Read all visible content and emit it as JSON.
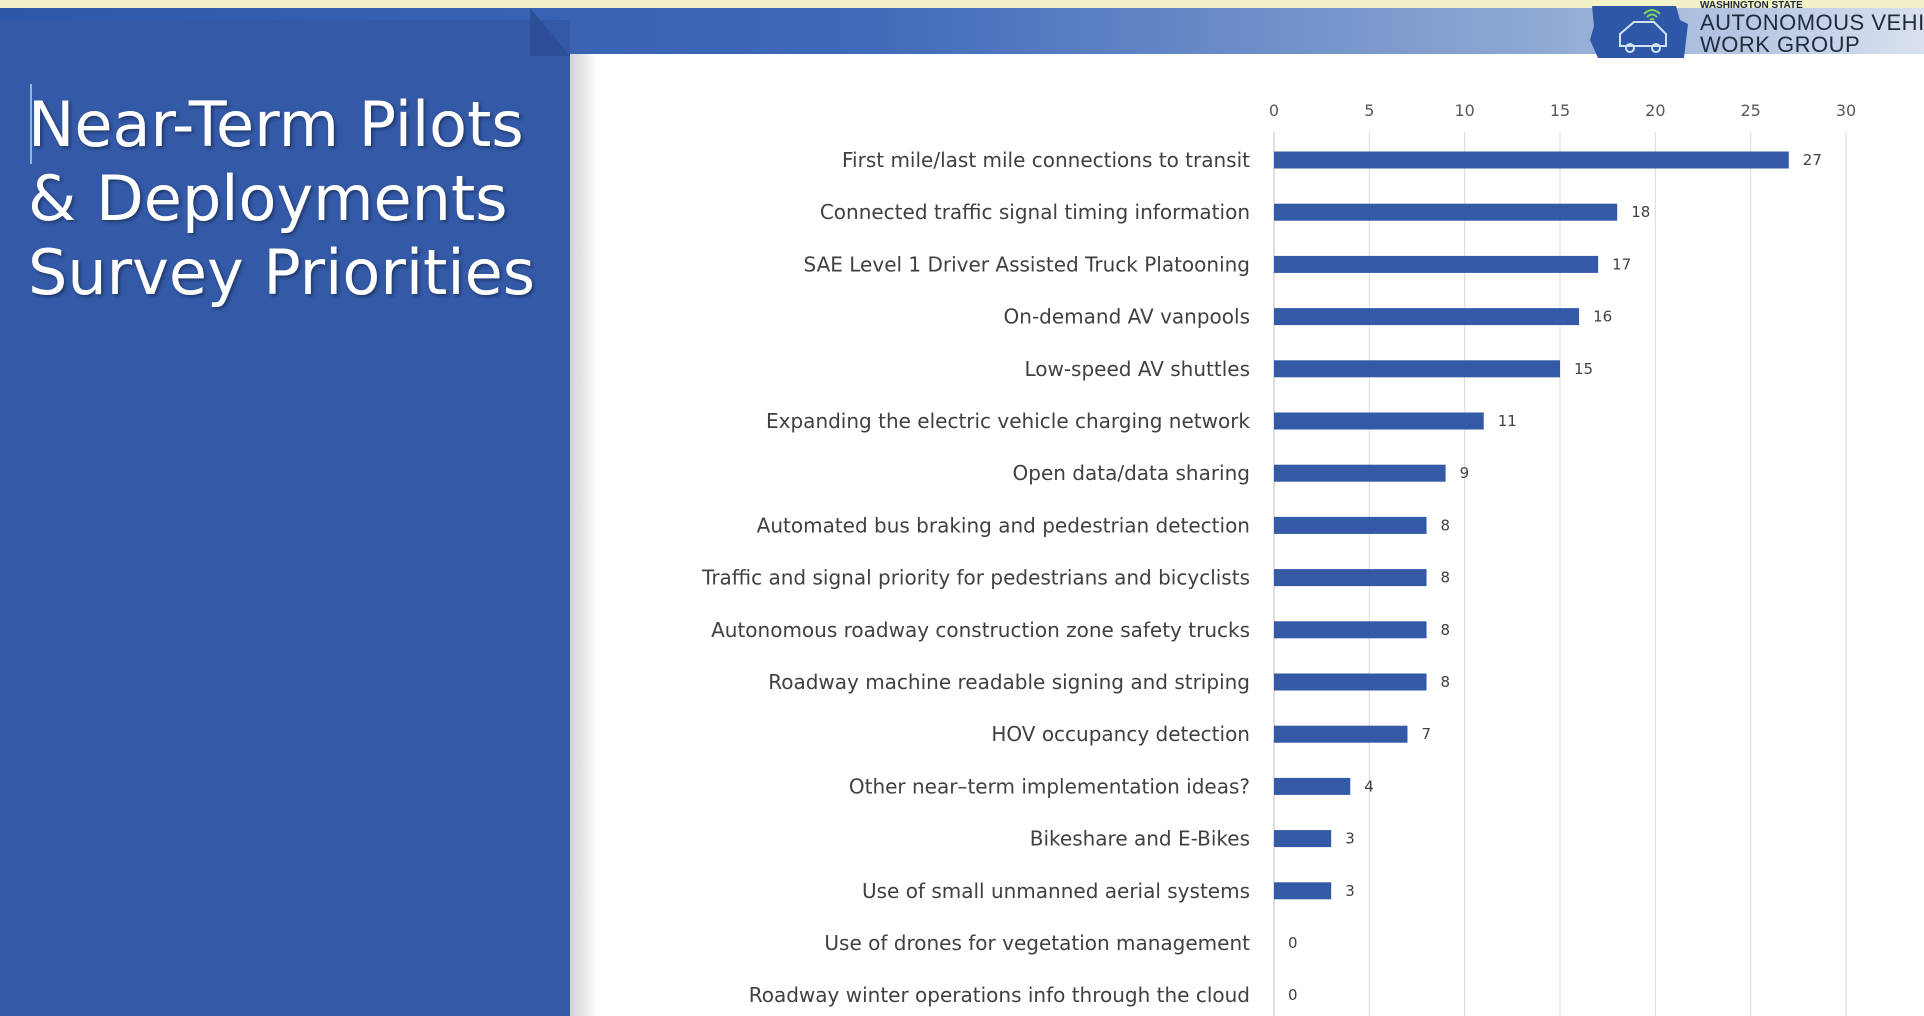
{
  "slide": {
    "title_lines": [
      "Near-Term Pilots",
      "& Deployments",
      "Survey Priorities"
    ]
  },
  "logo": {
    "small_text": "WASHINGTON STATE",
    "line1": "AUTONOMOUS VEHICLE",
    "line2": "WORK GROUP",
    "icon": "car-wifi-icon"
  },
  "colors": {
    "panel": "#3359a7",
    "bar": "#3359a7"
  },
  "chart_data": {
    "type": "bar",
    "orientation": "horizontal",
    "categories": [
      "First mile/last mile connections to transit",
      "Connected traffic signal timing information",
      "SAE Level 1 Driver Assisted Truck Platooning",
      "On-demand AV vanpools",
      "Low-speed AV shuttles",
      "Expanding the electric vehicle charging network",
      "Open data/data sharing",
      "Automated bus braking and pedestrian detection",
      "Traffic and signal priority for pedestrians and bicyclists",
      "Autonomous roadway construction zone safety trucks",
      "Roadway machine readable signing and striping",
      "HOV occupancy detection",
      "Other near–term implementation ideas?",
      "Bikeshare and E-Bikes",
      "Use of small unmanned aerial systems",
      "Use of drones for vegetation management",
      "Roadway winter operations info through the cloud"
    ],
    "values": [
      27,
      18,
      17,
      16,
      15,
      11,
      9,
      8,
      8,
      8,
      8,
      7,
      4,
      3,
      3,
      0,
      0
    ],
    "xlim": [
      0,
      30
    ],
    "xticks": [
      0,
      5,
      10,
      15,
      20,
      25,
      30
    ],
    "axis_position": "top",
    "grid": true,
    "data_labels": true,
    "title": "",
    "xlabel": "",
    "ylabel": ""
  }
}
